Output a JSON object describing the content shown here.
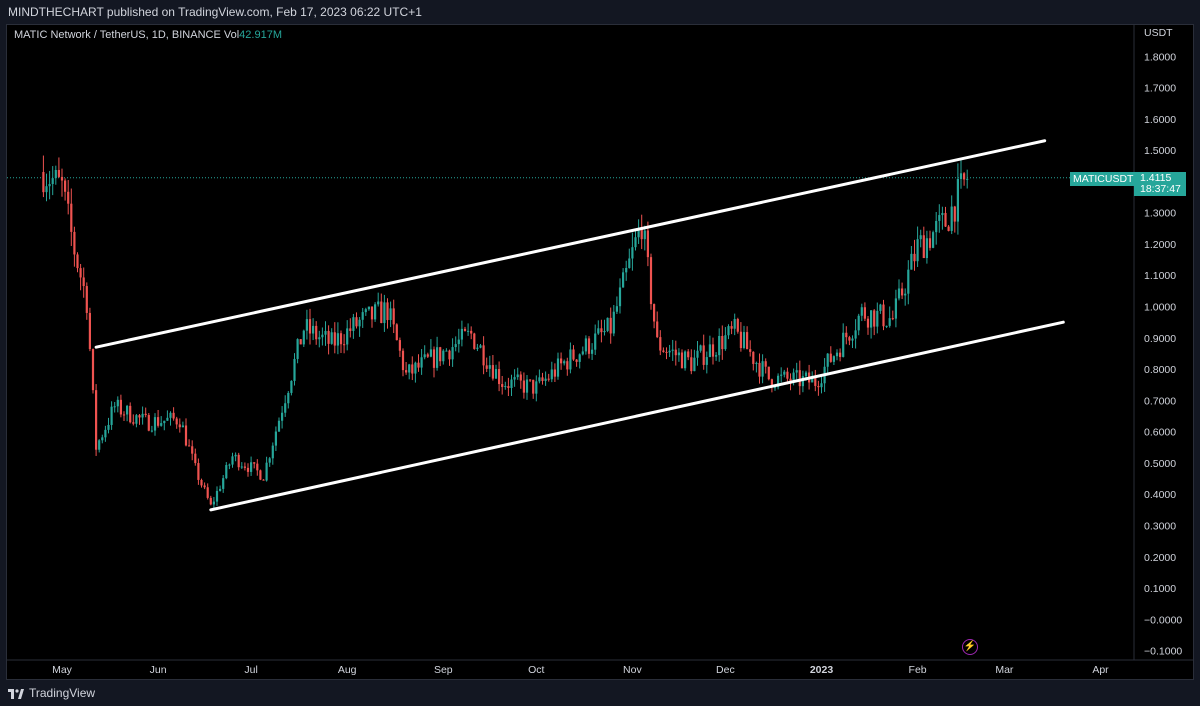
{
  "header": {
    "publish_line": "MINDTHECHART published on TradingView.com, Feb 17, 2023 06:22 UTC+1"
  },
  "legend": {
    "symbol_line": "MATIC Network / TetherUS, 1D, BINANCE",
    "vol_label": "Vol",
    "vol_value": "42.917M"
  },
  "price_axis": {
    "currency": "USDT",
    "ticks": [
      "1.8000",
      "1.7000",
      "1.6000",
      "1.5000",
      "1.3000",
      "1.2000",
      "1.1000",
      "1.0000",
      "0.9000",
      "0.8000",
      "0.7000",
      "0.6000",
      "0.5000",
      "0.4000",
      "0.3000",
      "0.2000",
      "0.1000",
      "−0.0000",
      "−0.1000"
    ]
  },
  "last_price": {
    "symbol": "MATICUSDT",
    "price": "1.4115",
    "countdown": "18:37:47"
  },
  "footer": {
    "brand": "TradingView"
  },
  "colors": {
    "up": "#26a69a",
    "down": "#ef5350",
    "trendline": "#ffffff",
    "background": "#000000"
  },
  "icons": {
    "flash": "lightning-icon",
    "logo": "tradingview-logo-icon"
  },
  "chart_data": {
    "type": "candlestick",
    "title": "MATIC Network / TetherUS, 1D, BINANCE",
    "ylim": [
      -0.13,
      1.9
    ],
    "x_axis_labels": [
      "May",
      "Jun",
      "Jul",
      "Aug",
      "Sep",
      "Oct",
      "Nov",
      "Dec",
      "2023",
      "Feb",
      "Mar",
      "Apr"
    ],
    "close_path": [
      {
        "date": "2022-04-25",
        "close": 1.43
      },
      {
        "date": "2022-05-01",
        "close": 1.38
      },
      {
        "date": "2022-05-05",
        "close": 1.18
      },
      {
        "date": "2022-05-09",
        "close": 1.02
      },
      {
        "date": "2022-05-12",
        "close": 0.55
      },
      {
        "date": "2022-05-18",
        "close": 0.68
      },
      {
        "date": "2022-05-28",
        "close": 0.63
      },
      {
        "date": "2022-06-08",
        "close": 0.64
      },
      {
        "date": "2022-06-13",
        "close": 0.48
      },
      {
        "date": "2022-06-18",
        "close": 0.36
      },
      {
        "date": "2022-06-25",
        "close": 0.52
      },
      {
        "date": "2022-07-05",
        "close": 0.46
      },
      {
        "date": "2022-07-18",
        "close": 0.93
      },
      {
        "date": "2022-07-27",
        "close": 0.88
      },
      {
        "date": "2022-08-05",
        "close": 0.95
      },
      {
        "date": "2022-08-14",
        "close": 0.99
      },
      {
        "date": "2022-08-20",
        "close": 0.78
      },
      {
        "date": "2022-09-10",
        "close": 0.91
      },
      {
        "date": "2022-09-20",
        "close": 0.76
      },
      {
        "date": "2022-10-01",
        "close": 0.74
      },
      {
        "date": "2022-10-10",
        "close": 0.82
      },
      {
        "date": "2022-10-25",
        "close": 0.93
      },
      {
        "date": "2022-11-04",
        "close": 1.27
      },
      {
        "date": "2022-11-09",
        "close": 0.88
      },
      {
        "date": "2022-11-20",
        "close": 0.82
      },
      {
        "date": "2022-12-04",
        "close": 0.92
      },
      {
        "date": "2022-12-15",
        "close": 0.77
      },
      {
        "date": "2022-12-30",
        "close": 0.76
      },
      {
        "date": "2023-01-14",
        "close": 0.98
      },
      {
        "date": "2023-01-24",
        "close": 0.96
      },
      {
        "date": "2023-02-01",
        "close": 1.19
      },
      {
        "date": "2023-02-10",
        "close": 1.27
      },
      {
        "date": "2023-02-17",
        "close": 1.4115
      }
    ],
    "channel_lines": [
      {
        "name": "upper",
        "start": {
          "date": "2022-05-12",
          "value": 0.87
        },
        "end": {
          "date": "2023-03-14",
          "value": 1.53
        }
      },
      {
        "name": "lower",
        "start": {
          "date": "2022-06-18",
          "value": 0.35
        },
        "end": {
          "date": "2023-03-20",
          "value": 0.95
        }
      }
    ],
    "grid": false,
    "last_value": 1.4115
  }
}
